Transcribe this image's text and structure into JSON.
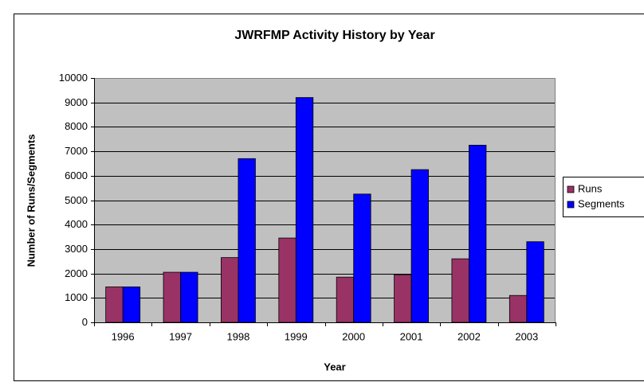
{
  "chart_data": {
    "type": "bar",
    "title": "JWRFMP Activity History by Year",
    "x_label": "Year",
    "y_label": "Number of Runs/Segments",
    "categories": [
      "1996",
      "1997",
      "1998",
      "1999",
      "2000",
      "2001",
      "2002",
      "2003"
    ],
    "series": [
      {
        "name": "Runs",
        "color": "#993366",
        "values": [
          1450,
          2050,
          2650,
          3450,
          1850,
          1950,
          2600,
          1100
        ]
      },
      {
        "name": "Segments",
        "color": "#0000ff",
        "values": [
          1450,
          2050,
          6700,
          9200,
          5250,
          6250,
          7250,
          3300
        ]
      }
    ],
    "ylim": [
      0,
      10000
    ],
    "yticks": [
      0,
      1000,
      2000,
      3000,
      4000,
      5000,
      6000,
      7000,
      8000,
      9000,
      10000
    ],
    "grid": true,
    "legend": "right"
  }
}
